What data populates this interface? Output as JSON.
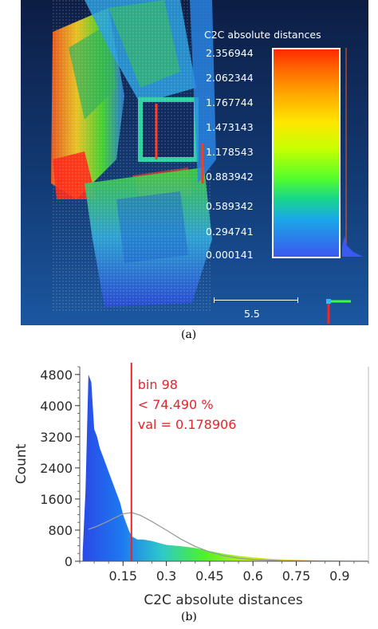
{
  "panel_a": {
    "caption": "(a)",
    "scalar_bar": {
      "title": "C2C absolute distances",
      "ticks": [
        "2.356944",
        "2.062344",
        "1.767744",
        "1.473143",
        "1.178543",
        "0.883942",
        "0.589342",
        "0.294741",
        "0.000141"
      ],
      "colors": [
        "#ff2a00",
        "#ffaa00",
        "#ffe600",
        "#55ff2a",
        "#1aa7e8",
        "#3b58f0"
      ]
    },
    "scale_label": "5.5",
    "icons": [
      "point-cloud-image",
      "axis-triad-icon"
    ]
  },
  "panel_b": {
    "caption": "(b)",
    "annotation": {
      "lines": [
        "bin 98",
        "< 74.490 %",
        "val = 0.178906"
      ],
      "color": "#e8242a"
    }
  },
  "chart_data": {
    "type": "area",
    "xlabel": "C2C absolute distances",
    "ylabel": "Count",
    "xlim": [
      0.0,
      1.0
    ],
    "ylim": [
      0,
      5000
    ],
    "xticks": [
      0.15,
      0.3,
      0.45,
      0.6,
      0.75,
      0.9
    ],
    "xtick_labels": [
      "0.15",
      "0.3",
      "0.45",
      "0.6",
      "0.75",
      "0.9"
    ],
    "yticks": [
      0,
      800,
      1600,
      2400,
      3200,
      4000,
      4800
    ],
    "ytick_labels": [
      "0",
      "800",
      "1600",
      "2400",
      "3200",
      "4000",
      "4800"
    ],
    "marker_x": 0.178906,
    "histogram": {
      "x": [
        0.01,
        0.02,
        0.03,
        0.04,
        0.05,
        0.06,
        0.07,
        0.08,
        0.09,
        0.1,
        0.11,
        0.12,
        0.13,
        0.14,
        0.15,
        0.16,
        0.17,
        0.18,
        0.2,
        0.22,
        0.25,
        0.28,
        0.3,
        0.33,
        0.36,
        0.4,
        0.45,
        0.5,
        0.55,
        0.6,
        0.65,
        0.7,
        0.75,
        0.8,
        0.85,
        0.9,
        0.95,
        1.0
      ],
      "y": [
        200,
        1800,
        4800,
        4600,
        3400,
        3200,
        2900,
        2700,
        2500,
        2300,
        2100,
        1900,
        1700,
        1500,
        1200,
        1000,
        800,
        640,
        560,
        560,
        520,
        460,
        420,
        400,
        380,
        340,
        260,
        190,
        140,
        100,
        70,
        50,
        35,
        25,
        18,
        12,
        8,
        5
      ]
    },
    "fit_curve": {
      "x": [
        0.03,
        0.06,
        0.09,
        0.12,
        0.15,
        0.18,
        0.21,
        0.25,
        0.3,
        0.35,
        0.4,
        0.45,
        0.5,
        0.55,
        0.6,
        0.7,
        0.8,
        0.9,
        1.0
      ],
      "y": [
        820,
        900,
        1000,
        1110,
        1220,
        1250,
        1180,
        1020,
        800,
        570,
        380,
        240,
        140,
        80,
        45,
        15,
        5,
        2,
        0
      ]
    },
    "colors": {
      "stops": [
        "#2b46e6",
        "#1d78f0",
        "#2fc9c9",
        "#4df22b",
        "#b7f21a",
        "#f2e21a",
        "#ff7a1a",
        "#ff1a1a"
      ],
      "marker": "#e8242a",
      "fit": "#9a9a9a"
    }
  }
}
